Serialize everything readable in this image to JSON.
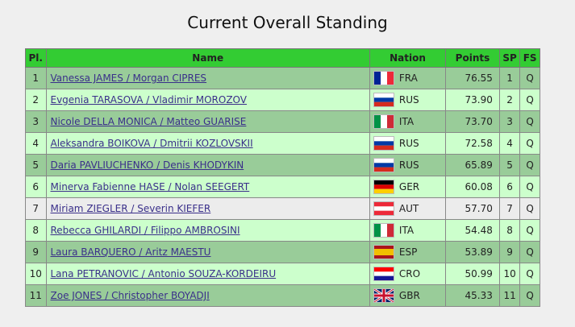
{
  "title": "Current Overall Standing",
  "table": {
    "header": [
      "Pl.",
      "Name",
      "Nation",
      "Points",
      "SP",
      "FS"
    ],
    "rows": [
      [
        "1",
        "Vanessa JAMES / Morgan CIPRES",
        "FRA",
        "76.55",
        "1",
        "Q"
      ],
      [
        "2",
        "Evgenia TARASOVA / Vladimir MOROZOV",
        "RUS",
        "73.90",
        "2",
        "Q"
      ],
      [
        "3",
        "Nicole DELLA MONICA / Matteo GUARISE",
        "ITA",
        "73.70",
        "3",
        "Q"
      ],
      [
        "4",
        "Aleksandra BOIKOVA / Dmitrii KOZLOVSKII",
        "RUS",
        "72.58",
        "4",
        "Q"
      ],
      [
        "5",
        "Daria PAVLIUCHENKO / Denis KHODYKIN",
        "RUS",
        "65.89",
        "5",
        "Q"
      ],
      [
        "6",
        "Minerva Fabienne HASE / Nolan SEEGERT",
        "GER",
        "60.08",
        "6",
        "Q"
      ],
      [
        "7",
        "Miriam ZIEGLER / Severin KIEFER",
        "AUT",
        "57.70",
        "7",
        "Q"
      ],
      [
        "8",
        "Rebecca GHILARDI / Filippo AMBROSINI",
        "ITA",
        "54.48",
        "8",
        "Q"
      ],
      [
        "9",
        "Laura BARQUERO / Aritz MAESTU",
        "ESP",
        "53.89",
        "9",
        "Q"
      ],
      [
        "10",
        "Lana PETRANOVIC / Antonio SOUZA-KORDEIRU",
        "CRO",
        "50.99",
        "10",
        "Q"
      ],
      [
        "11",
        "Zoe JONES / Christopher BOYADJI",
        "GBR",
        "45.33",
        "11",
        "Q"
      ]
    ]
  }
}
